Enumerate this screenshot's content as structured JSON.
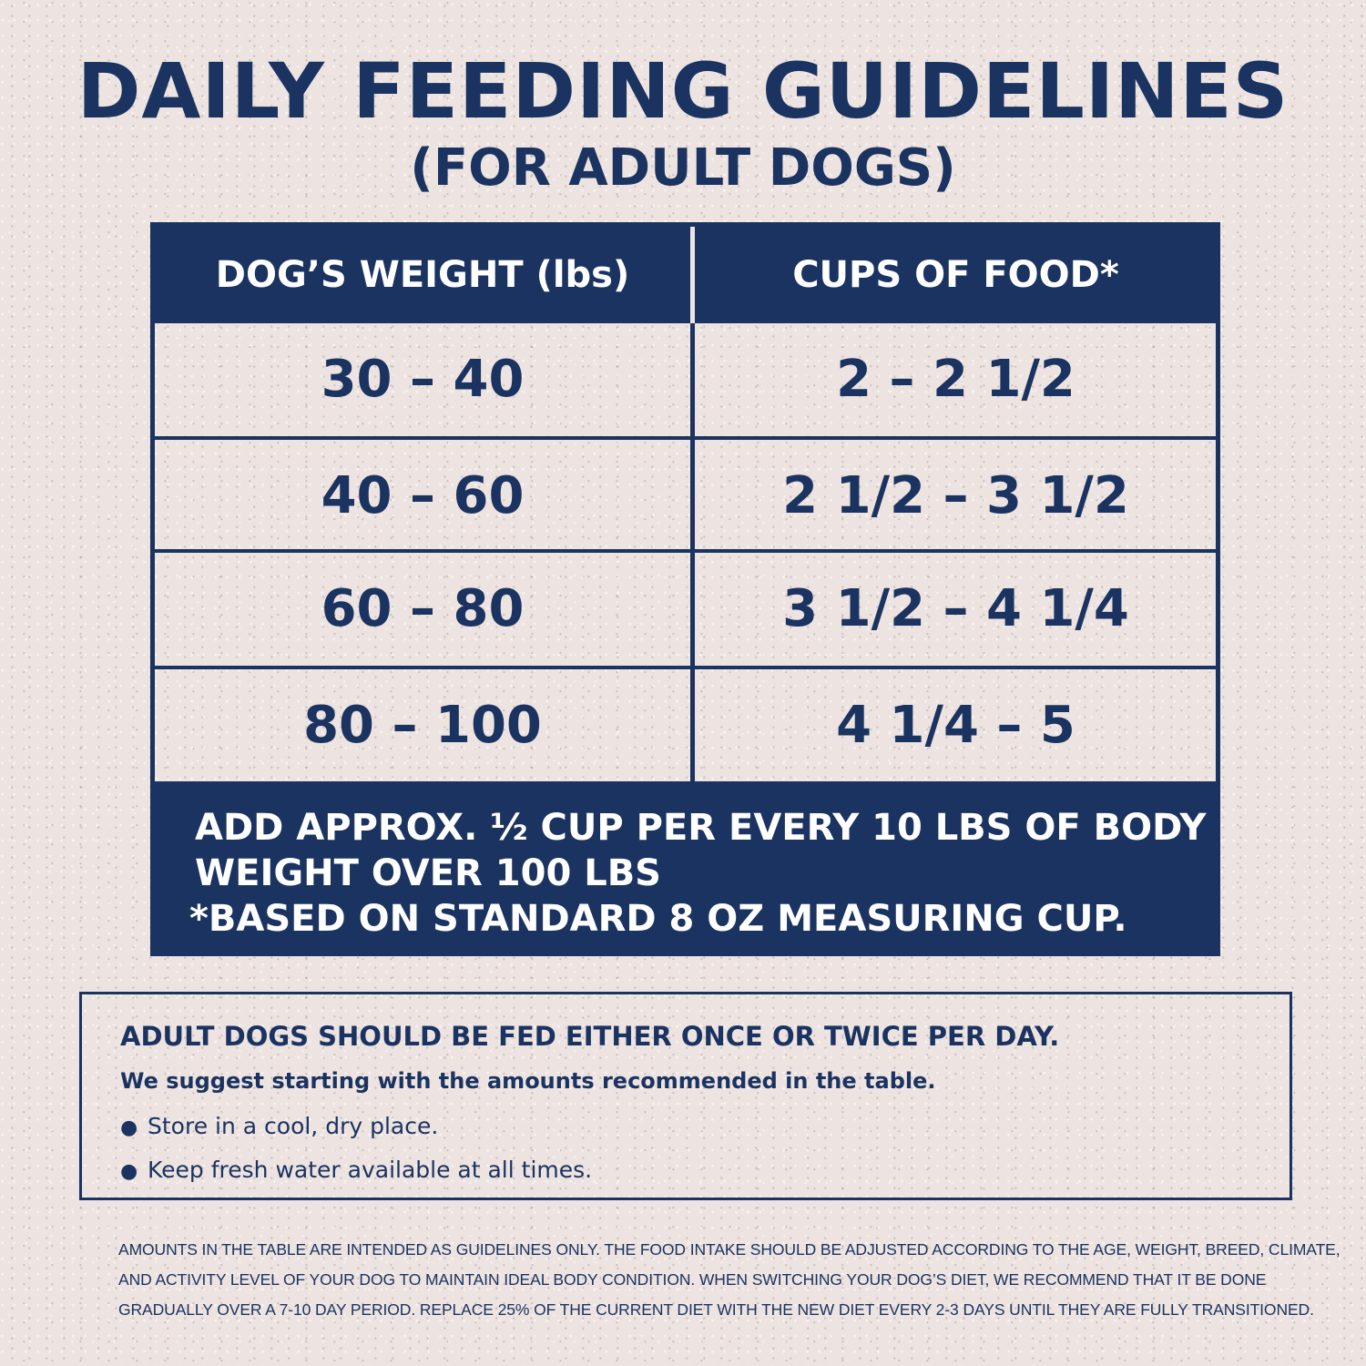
{
  "header": {
    "title": "DAILY FEEDING GUIDELINES",
    "subtitle": "(FOR ADULT DOGS)"
  },
  "table": {
    "columns": [
      "DOG’S WEIGHT (lbs)",
      "CUPS OF FOOD*"
    ],
    "rows": [
      {
        "weight": "30 – 40",
        "cups": "2 – 2 1/2"
      },
      {
        "weight": "40 – 60",
        "cups": "2 1/2 – 3 1/2"
      },
      {
        "weight": "60 – 80",
        "cups": "3 1/2 – 4 1/4"
      },
      {
        "weight": "80 – 100",
        "cups": "4 1/4 – 5"
      }
    ],
    "note_lines": [
      "ADD APPROX. ½ CUP PER EVERY 10 LBS OF BODY",
      "WEIGHT OVER 100 LBS",
      "*BASED ON STANDARD 8 OZ MEASURING CUP."
    ]
  },
  "info": {
    "heading": "ADULT DOGS SHOULD BE FED EITHER ONCE OR TWICE PER DAY.",
    "subheading": "We suggest starting with the amounts recommended in the table.",
    "bullets": [
      "Store in a cool, dry place.",
      "Keep fresh water available at all times."
    ]
  },
  "disclaimer": {
    "lines": [
      "AMOUNTS IN THE TABLE ARE INTENDED AS GUIDELINES ONLY. THE FOOD INTAKE SHOULD BE ADJUSTED ACCORDING TO THE AGE, WEIGHT, BREED, CLIMATE,",
      "AND ACTIVITY LEVEL OF YOUR DOG TO MAINTAIN IDEAL BODY CONDITION. WHEN SWITCHING YOUR DOG’S DIET, WE RECOMMEND THAT IT BE DONE",
      "GRADUALLY OVER A 7-10 DAY PERIOD. REPLACE 25% OF THE CURRENT DIET WITH THE NEW DIET EVERY 2-3 DAYS UNTIL THEY ARE FULLY TRANSITIONED."
    ]
  },
  "colors": {
    "navy": "#1b3360",
    "background": "#ede4e1",
    "header_text": "#ffffff"
  }
}
